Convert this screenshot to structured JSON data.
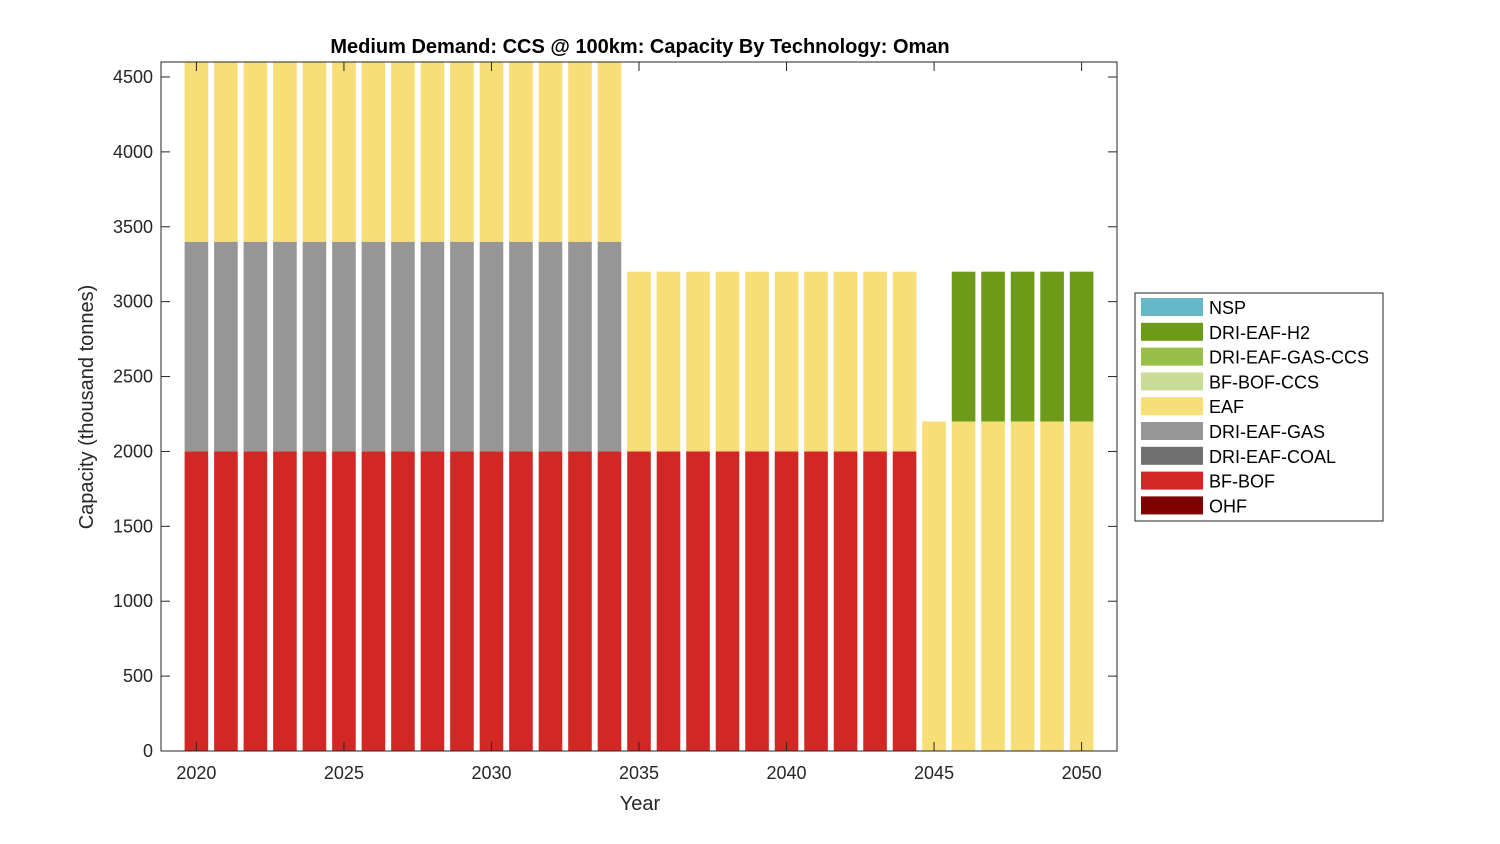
{
  "chart_data": {
    "type": "bar",
    "stacked": true,
    "title": "Medium Demand: CCS @ 100km: Capacity By Technology: Oman",
    "xlabel": "Year",
    "ylabel": "Capacity (thousand tonnes)",
    "xlim": [
      2018.8,
      2051.2
    ],
    "ylim": [
      0,
      4600
    ],
    "xticks": [
      2020,
      2025,
      2030,
      2035,
      2040,
      2045,
      2050
    ],
    "yticks": [
      0,
      500,
      1000,
      1500,
      2000,
      2500,
      3000,
      3500,
      4000,
      4500
    ],
    "grid": false,
    "legend_position": "right",
    "x": [
      2020,
      2021,
      2022,
      2023,
      2024,
      2025,
      2026,
      2027,
      2028,
      2029,
      2030,
      2031,
      2032,
      2033,
      2034,
      2035,
      2036,
      2037,
      2038,
      2039,
      2040,
      2041,
      2042,
      2043,
      2044,
      2045,
      2046,
      2047,
      2048,
      2049,
      2050
    ],
    "series": [
      {
        "name": "OHF",
        "color": "#7f0000",
        "values": [
          0,
          0,
          0,
          0,
          0,
          0,
          0,
          0,
          0,
          0,
          0,
          0,
          0,
          0,
          0,
          0,
          0,
          0,
          0,
          0,
          0,
          0,
          0,
          0,
          0,
          0,
          0,
          0,
          0,
          0,
          0
        ]
      },
      {
        "name": "BF-BOF",
        "color": "#d12826",
        "values": [
          2000,
          2000,
          2000,
          2000,
          2000,
          2000,
          2000,
          2000,
          2000,
          2000,
          2000,
          2000,
          2000,
          2000,
          2000,
          2000,
          2000,
          2000,
          2000,
          2000,
          2000,
          2000,
          2000,
          2000,
          2000,
          0,
          0,
          0,
          0,
          0,
          0
        ]
      },
      {
        "name": "DRI-EAF-COAL",
        "color": "#707070",
        "values": [
          0,
          0,
          0,
          0,
          0,
          0,
          0,
          0,
          0,
          0,
          0,
          0,
          0,
          0,
          0,
          0,
          0,
          0,
          0,
          0,
          0,
          0,
          0,
          0,
          0,
          0,
          0,
          0,
          0,
          0,
          0
        ]
      },
      {
        "name": "DRI-EAF-GAS",
        "color": "#969696",
        "values": [
          1400,
          1400,
          1400,
          1400,
          1400,
          1400,
          1400,
          1400,
          1400,
          1400,
          1400,
          1400,
          1400,
          1400,
          1400,
          0,
          0,
          0,
          0,
          0,
          0,
          0,
          0,
          0,
          0,
          0,
          0,
          0,
          0,
          0,
          0
        ]
      },
      {
        "name": "EAF",
        "color": "#f7de77",
        "values": [
          1200,
          1200,
          1200,
          1200,
          1200,
          1200,
          1200,
          1200,
          1200,
          1200,
          1200,
          1200,
          1200,
          1200,
          1200,
          1200,
          1200,
          1200,
          1200,
          1200,
          1200,
          1200,
          1200,
          1200,
          1200,
          2200,
          2200,
          2200,
          2200,
          2200,
          2200
        ]
      },
      {
        "name": "BF-BOF-CCS",
        "color": "#c8dc98",
        "values": [
          0,
          0,
          0,
          0,
          0,
          0,
          0,
          0,
          0,
          0,
          0,
          0,
          0,
          0,
          0,
          0,
          0,
          0,
          0,
          0,
          0,
          0,
          0,
          0,
          0,
          0,
          0,
          0,
          0,
          0,
          0
        ]
      },
      {
        "name": "DRI-EAF-GAS-CCS",
        "color": "#98bf48",
        "values": [
          0,
          0,
          0,
          0,
          0,
          0,
          0,
          0,
          0,
          0,
          0,
          0,
          0,
          0,
          0,
          0,
          0,
          0,
          0,
          0,
          0,
          0,
          0,
          0,
          0,
          0,
          0,
          0,
          0,
          0,
          0
        ]
      },
      {
        "name": "DRI-EAF-H2",
        "color": "#6e9a1a",
        "values": [
          0,
          0,
          0,
          0,
          0,
          0,
          0,
          0,
          0,
          0,
          0,
          0,
          0,
          0,
          0,
          0,
          0,
          0,
          0,
          0,
          0,
          0,
          0,
          0,
          0,
          0,
          1000,
          1000,
          1000,
          1000,
          1000
        ]
      },
      {
        "name": "NSP",
        "color": "#65b8c8",
        "values": [
          0,
          0,
          0,
          0,
          0,
          0,
          0,
          0,
          0,
          0,
          0,
          0,
          0,
          0,
          0,
          0,
          0,
          0,
          0,
          0,
          0,
          0,
          0,
          0,
          0,
          0,
          0,
          0,
          0,
          0,
          0
        ]
      }
    ]
  }
}
